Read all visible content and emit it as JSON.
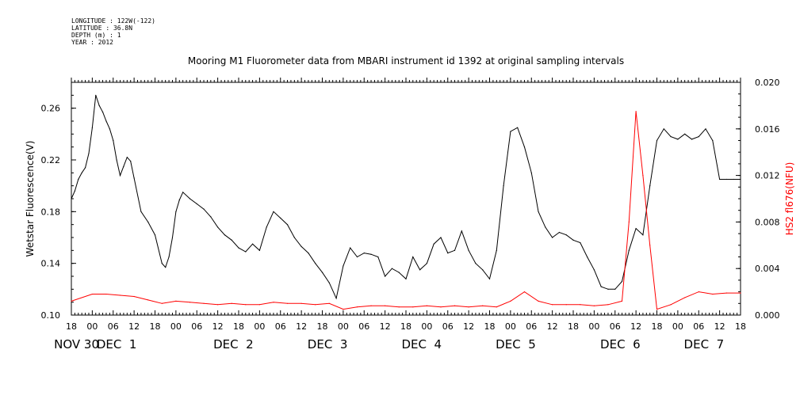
{
  "metadata": {
    "longitude": "LONGITUDE : 122W(-122)",
    "latitude": "LATITUDE : 36.8N",
    "depth": "DEPTH (m) : 1",
    "year": "YEAR : 2012"
  },
  "chart_data": {
    "type": "line",
    "title": "Mooring M1 Fluorometer data from MBARI instrument id 1392 at original sampling intervals",
    "xlabel": "",
    "ylabel": "Wetstar Fluorescence(V)",
    "y2label": "HS2 fl676(NFU)",
    "xlim_hours": [
      -6,
      186
    ],
    "ylim": [
      0.1,
      0.28
    ],
    "y2lim": [
      0.0,
      0.02
    ],
    "yticks": [
      "0.10",
      "0.14",
      "0.18",
      "0.22",
      "0.26"
    ],
    "y2ticks": [
      "0.000",
      "0.004",
      "0.008",
      "0.012",
      "0.016",
      "0.020"
    ],
    "xtick_labels": [
      "18",
      "00",
      "06",
      "12",
      "18",
      "00",
      "06",
      "12",
      "18",
      "00",
      "06",
      "12",
      "18",
      "00",
      "06",
      "12",
      "18",
      "00",
      "06",
      "12",
      "18",
      "00",
      "06",
      "12",
      "18",
      "00",
      "06",
      "12",
      "18",
      "00",
      "06",
      "12",
      "18"
    ],
    "day_labels": [
      {
        "label": "NOV 30",
        "anchor_hour": -4.5
      },
      {
        "label": "DEC  1",
        "anchor_hour": 7.0
      },
      {
        "label": "DEC  2",
        "anchor_hour": 40.5
      },
      {
        "label": "DEC  3",
        "anchor_hour": 67.5
      },
      {
        "label": "DEC  4",
        "anchor_hour": 94.5
      },
      {
        "label": "DEC  5",
        "anchor_hour": 121.5
      },
      {
        "label": "DEC  6",
        "anchor_hour": 151.5
      },
      {
        "label": "DEC  7",
        "anchor_hour": 175.5
      }
    ],
    "grid": false,
    "series": [
      {
        "name": "Wetstar Fluorescence(V)",
        "color": "#000000",
        "axis": "left",
        "x": [
          -6,
          -5,
          -4,
          -3,
          -2,
          -1,
          0,
          1,
          2,
          3,
          4,
          5,
          6,
          7,
          8,
          9,
          10,
          11,
          12,
          14,
          16,
          18,
          20,
          21,
          22,
          23,
          24,
          25,
          26,
          28,
          30,
          32,
          34,
          36,
          38,
          40,
          42,
          44,
          46,
          48,
          50,
          52,
          54,
          56,
          58,
          60,
          62,
          64,
          66,
          68,
          70,
          72,
          74,
          76,
          78,
          80,
          82,
          84,
          86,
          88,
          90,
          92,
          94,
          96,
          98,
          100,
          102,
          104,
          106,
          108,
          110,
          112,
          114,
          116,
          118,
          120,
          122,
          124,
          126,
          128,
          130,
          132,
          134,
          136,
          138,
          140,
          142,
          144,
          146,
          148,
          150,
          152,
          154,
          156,
          158,
          160,
          162,
          164,
          166,
          168,
          170,
          172,
          174,
          176,
          178,
          180,
          182,
          184,
          186
        ],
        "values": [
          0.19,
          0.196,
          0.205,
          0.21,
          0.214,
          0.225,
          0.245,
          0.27,
          0.262,
          0.257,
          0.25,
          0.244,
          0.235,
          0.22,
          0.208,
          0.215,
          0.222,
          0.219,
          0.206,
          0.18,
          0.172,
          0.162,
          0.14,
          0.137,
          0.145,
          0.16,
          0.18,
          0.189,
          0.195,
          0.19,
          0.186,
          0.182,
          0.176,
          0.168,
          0.162,
          0.158,
          0.152,
          0.149,
          0.155,
          0.15,
          0.168,
          0.18,
          0.175,
          0.17,
          0.16,
          0.153,
          0.148,
          0.14,
          0.133,
          0.125,
          0.113,
          0.138,
          0.152,
          0.145,
          0.148,
          0.147,
          0.145,
          0.13,
          0.136,
          0.133,
          0.128,
          0.145,
          0.135,
          0.14,
          0.155,
          0.16,
          0.148,
          0.15,
          0.165,
          0.15,
          0.14,
          0.135,
          0.128,
          0.15,
          0.2,
          0.242,
          0.245,
          0.23,
          0.21,
          0.18,
          0.168,
          0.16,
          0.164,
          0.162,
          0.158,
          0.156,
          0.145,
          0.135,
          0.122,
          0.12,
          0.12,
          0.126,
          0.15,
          0.167,
          0.162,
          0.2,
          0.235,
          0.244,
          0.238,
          0.236,
          0.24,
          0.236,
          0.238,
          0.244,
          0.235,
          0.205,
          0.205,
          0.205,
          0.205
        ]
      },
      {
        "name": "HS2 fl676(NFU)",
        "color": "#ff0000",
        "axis": "right",
        "x": [
          -6,
          0,
          4,
          8,
          12,
          16,
          20,
          24,
          28,
          32,
          36,
          40,
          44,
          48,
          52,
          56,
          60,
          64,
          68,
          72,
          76,
          80,
          84,
          88,
          92,
          96,
          100,
          104,
          108,
          112,
          116,
          120,
          124,
          128,
          132,
          136,
          140,
          144,
          148,
          152,
          154,
          156,
          158,
          160,
          162,
          166,
          170,
          174,
          178,
          182,
          186
        ],
        "values": [
          0.0012,
          0.0018,
          0.0018,
          0.0017,
          0.0016,
          0.0013,
          0.001,
          0.0012,
          0.0011,
          0.001,
          0.0009,
          0.001,
          0.0009,
          0.0009,
          0.0011,
          0.001,
          0.001,
          0.0009,
          0.001,
          0.0005,
          0.0007,
          0.0008,
          0.0008,
          0.0007,
          0.0007,
          0.0008,
          0.0007,
          0.0008,
          0.0007,
          0.0008,
          0.0007,
          0.0012,
          0.002,
          0.0012,
          0.0009,
          0.0009,
          0.0009,
          0.0008,
          0.0009,
          0.0012,
          0.008,
          0.0175,
          0.012,
          0.006,
          0.0005,
          0.0009,
          0.0015,
          0.002,
          0.0018,
          0.0019,
          0.0019
        ]
      }
    ]
  }
}
